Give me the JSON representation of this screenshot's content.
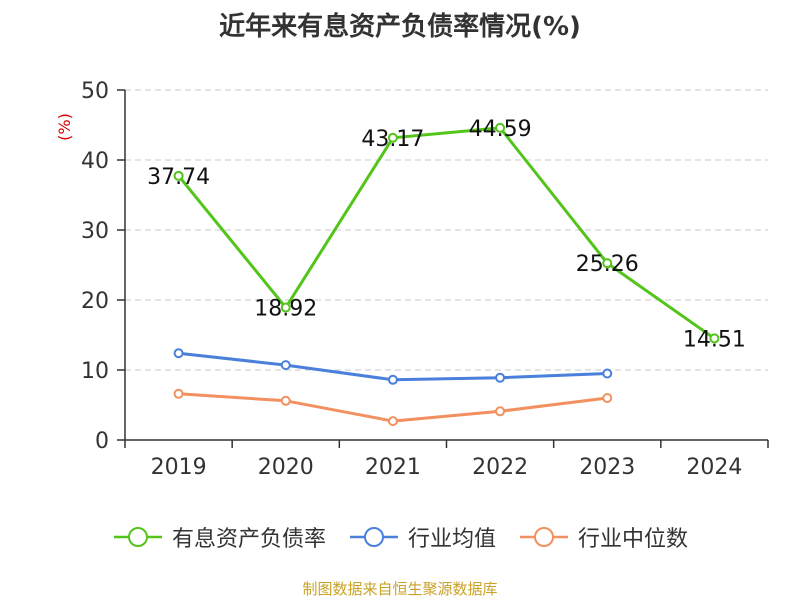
{
  "chart_data": {
    "type": "line",
    "title": "近年来有息资产负债率情况(%)",
    "ylabel": "(%)",
    "xlabel": "",
    "categories": [
      "2019",
      "2020",
      "2021",
      "2022",
      "2023",
      "2024"
    ],
    "ylim": [
      0,
      50
    ],
    "yticks": [
      0,
      10,
      20,
      30,
      40,
      50
    ],
    "grid": true,
    "legend_position": "bottom",
    "series": [
      {
        "name": "有息资产负债率",
        "color": "#52c41a",
        "values": [
          37.74,
          18.92,
          43.17,
          44.59,
          25.26,
          14.51
        ],
        "labels": [
          "37.74",
          "18.92",
          "43.17",
          "44.59",
          "25.26",
          "14.51"
        ]
      },
      {
        "name": "行业均值",
        "color": "#4a7fdc",
        "values": [
          12.4,
          10.7,
          8.6,
          8.9,
          9.5,
          null
        ]
      },
      {
        "name": "行业中位数",
        "color": "#f39060",
        "values": [
          6.6,
          5.6,
          2.7,
          4.1,
          6.0,
          null
        ]
      }
    ]
  },
  "footer": {
    "source": "制图数据来自恒生聚源数据库"
  }
}
